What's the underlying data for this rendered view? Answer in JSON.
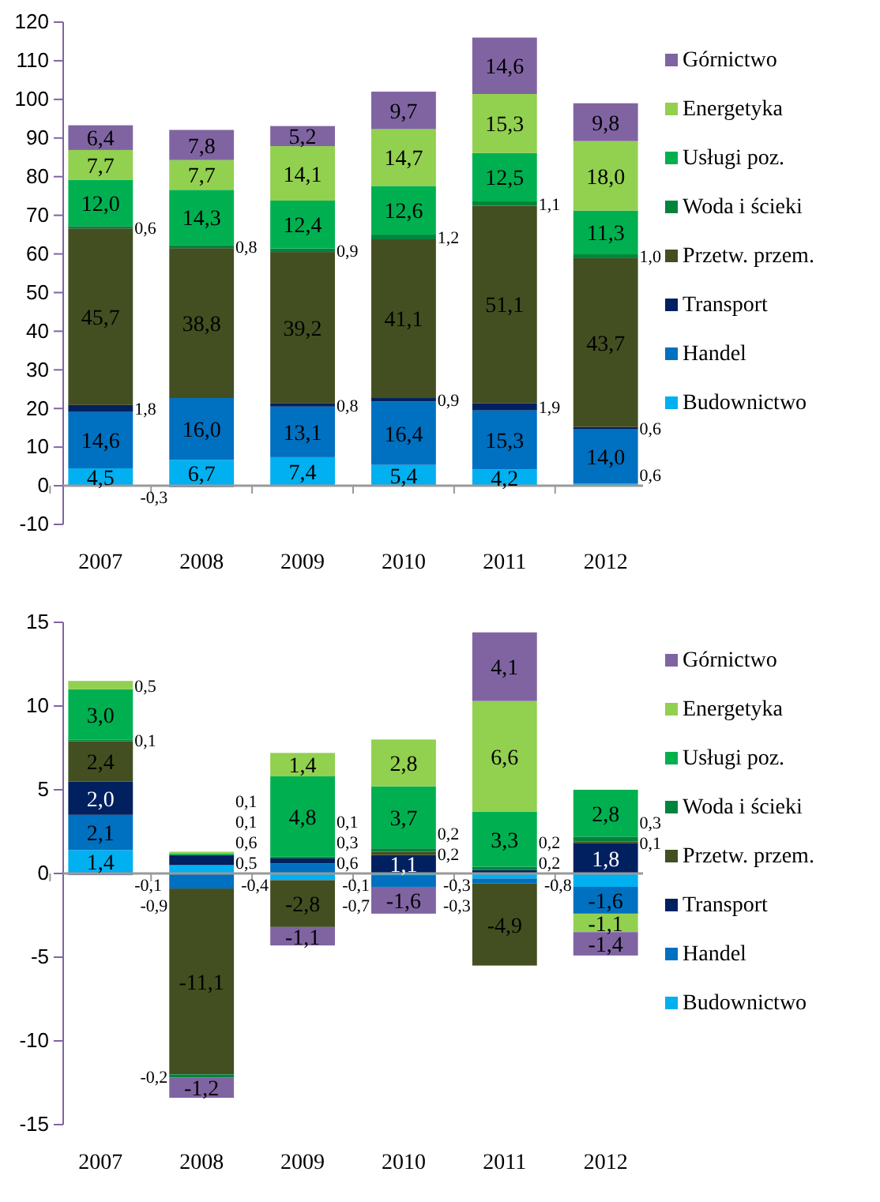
{
  "chart_data": [
    {
      "type": "bar",
      "stacked": true,
      "categories": [
        "2007",
        "2008",
        "2009",
        "2010",
        "2011",
        "2012"
      ],
      "ylim": [
        -10,
        120
      ],
      "yticks": [
        -10,
        0,
        10,
        20,
        30,
        40,
        50,
        60,
        70,
        80,
        90,
        100,
        110,
        120
      ],
      "legend": "right",
      "series": [
        {
          "name": "Budownictwo",
          "color": "#00b0f0",
          "values": [
            4.5,
            6.7,
            7.4,
            5.4,
            4.2,
            0.6
          ],
          "value_labels": [
            "4,5",
            "6,7",
            "7,4",
            "5,4",
            "4,2",
            "0,6"
          ]
        },
        {
          "name": "Handel",
          "color": "#0070c0",
          "values": [
            14.6,
            16.0,
            13.1,
            16.4,
            15.3,
            14.0
          ],
          "value_labels": [
            "14,6",
            "16,0",
            "13,1",
            "16,4",
            "15,3",
            "14,0"
          ]
        },
        {
          "name": "Transport",
          "color": "#002060",
          "values": [
            1.8,
            -0.3,
            0.8,
            0.9,
            1.9,
            0.6
          ],
          "value_labels": [
            "1,8",
            "-0,3",
            "0,8",
            "0,9",
            "1,9",
            "0,6"
          ]
        },
        {
          "name": "Przetw. przem.",
          "color": "#434f20",
          "values": [
            45.7,
            38.8,
            39.2,
            41.1,
            51.1,
            43.7
          ],
          "value_labels": [
            "45,7",
            "38,8",
            "39,2",
            "41,1",
            "51,1",
            "43,7"
          ]
        },
        {
          "name": "Woda i ścieki",
          "color": "#00843d",
          "values": [
            0.6,
            0.8,
            0.9,
            1.2,
            1.1,
            1.0
          ],
          "value_labels": [
            "0,6",
            "0,8",
            "0,9",
            "1,2",
            "1,1",
            "1,0"
          ]
        },
        {
          "name": "Usługi poz.",
          "color": "#00b050",
          "values": [
            12.0,
            14.3,
            12.4,
            12.6,
            12.5,
            11.3
          ],
          "value_labels": [
            "12,0",
            "14,3",
            "12,4",
            "12,6",
            "12,5",
            "11,3"
          ]
        },
        {
          "name": "Energetyka",
          "color": "#92d050",
          "values": [
            7.7,
            7.7,
            14.1,
            14.7,
            15.3,
            18.0
          ],
          "value_labels": [
            "7,7",
            "7,7",
            "14,1",
            "14,7",
            "15,3",
            "18,0"
          ]
        },
        {
          "name": "Górnictwo",
          "color": "#8064a2",
          "values": [
            6.4,
            7.8,
            5.2,
            9.7,
            14.6,
            9.8
          ],
          "value_labels": [
            "6,4",
            "7,8",
            "5,2",
            "9,7",
            "14,6",
            "9,8"
          ]
        }
      ]
    },
    {
      "type": "bar",
      "stacked": true,
      "categories": [
        "2007",
        "2008",
        "2009",
        "2010",
        "2011",
        "2012"
      ],
      "ylim": [
        -15,
        15
      ],
      "yticks": [
        -15,
        -10,
        -5,
        0,
        5,
        10,
        15
      ],
      "legend": "right",
      "series": [
        {
          "name": "Budownictwo",
          "color": "#00b0f0",
          "values": [
            1.4,
            0.5,
            -0.4,
            -0.1,
            -0.3,
            -0.8
          ],
          "value_labels": [
            "1,4",
            "0,5",
            "-0,4",
            "-0,1",
            "-0,3",
            "-0,8"
          ]
        },
        {
          "name": "Handel",
          "color": "#0070c0",
          "values": [
            2.1,
            -0.9,
            0.6,
            -0.7,
            -0.3,
            -1.6
          ],
          "value_labels": [
            "2,1",
            "-0,9",
            "0,6",
            "-0,7",
            "-0,3",
            "-1,6"
          ]
        },
        {
          "name": "Transport",
          "color": "#002060",
          "values": [
            2.0,
            0.6,
            0.3,
            1.1,
            0.2,
            1.8
          ],
          "value_labels": [
            "2,0",
            "0,6",
            "0,3",
            "1,1",
            "0,2",
            "1,8"
          ]
        },
        {
          "name": "Przetw. przem.",
          "color": "#434f20",
          "values": [
            2.4,
            -11.1,
            -2.8,
            0.2,
            -4.9,
            0.1
          ],
          "value_labels": [
            "2,4",
            "-11,1",
            "-2,8",
            "0,2",
            "-4,9",
            "0,1"
          ]
        },
        {
          "name": "Woda i ścieki",
          "color": "#00843d",
          "values": [
            0.1,
            -0.2,
            0.1,
            0.2,
            0.2,
            0.3
          ],
          "value_labels": [
            "0,1",
            "-0,2",
            "0,1",
            "0,2",
            "0,2",
            "0,3"
          ]
        },
        {
          "name": "Usługi poz.",
          "color": "#00b050",
          "values": [
            3.0,
            0.1,
            4.8,
            3.7,
            3.3,
            2.8
          ],
          "value_labels": [
            "3,0",
            "0,1",
            "4,8",
            "3,7",
            "3,3",
            "2,8"
          ]
        },
        {
          "name": "Energetyka",
          "color": "#92d050",
          "values": [
            0.5,
            0.1,
            1.4,
            2.8,
            6.6,
            -1.1
          ],
          "value_labels": [
            "0,5",
            "0,1",
            "1,4",
            "2,8",
            "6,6",
            "-1,1"
          ]
        },
        {
          "name": "Górnictwo",
          "color": "#8064a2",
          "values": [
            -0.1,
            -1.2,
            -1.1,
            -1.6,
            4.1,
            -1.4
          ],
          "value_labels": [
            "-0,1",
            "-1,2",
            "-1,1",
            "-1,6",
            "4,1",
            "-1,4"
          ]
        }
      ]
    }
  ]
}
